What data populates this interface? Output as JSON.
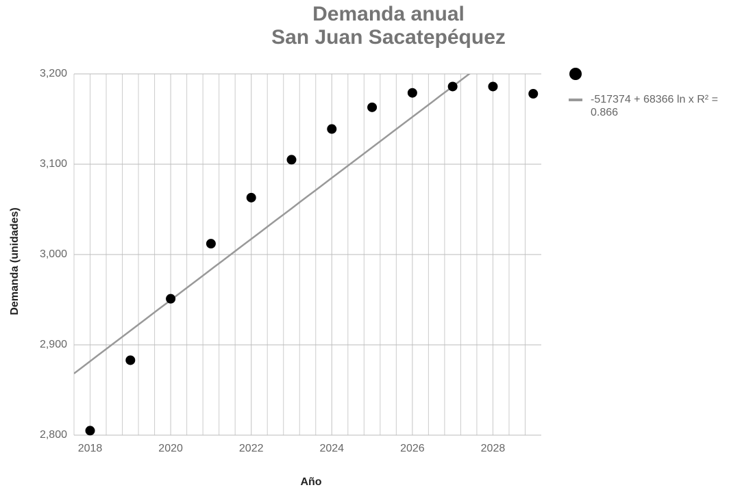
{
  "chart_data": {
    "type": "scatter",
    "title": [
      "Demanda anual",
      "San Juan Sacatepéquez"
    ],
    "x_label": "Año",
    "y_label": "Demanda (unidades)",
    "series": [
      {
        "color": "#000000",
        "x": [
          2018,
          2019,
          2020,
          2021,
          2022,
          2023,
          2024,
          2025,
          2026,
          2027,
          2028,
          2029
        ],
        "values": [
          2805,
          2883,
          2951,
          3012,
          3063,
          3105,
          3139,
          3163,
          3179,
          3186,
          3186,
          3178
        ]
      }
    ],
    "trendline": {
      "type": "logarithmic",
      "intercept": -517374,
      "coefficient": 68366,
      "color": "#999999",
      "label": "-517374 + 68366 ln x R² = 0.866"
    },
    "xlim": [
      2017.6,
      2029.2
    ],
    "xticks": [
      2018,
      2020,
      2022,
      2024,
      2026,
      2028
    ],
    "ylim": [
      2800,
      3200
    ],
    "yticks": [
      {
        "value": 2800,
        "label": "2,800"
      },
      {
        "value": 2900,
        "label": "2,900"
      },
      {
        "value": 3000,
        "label": "3,000"
      },
      {
        "value": 3100,
        "label": "3,100"
      },
      {
        "value": 3200,
        "label": "3,200"
      }
    ],
    "grid": true,
    "legend": "right"
  }
}
